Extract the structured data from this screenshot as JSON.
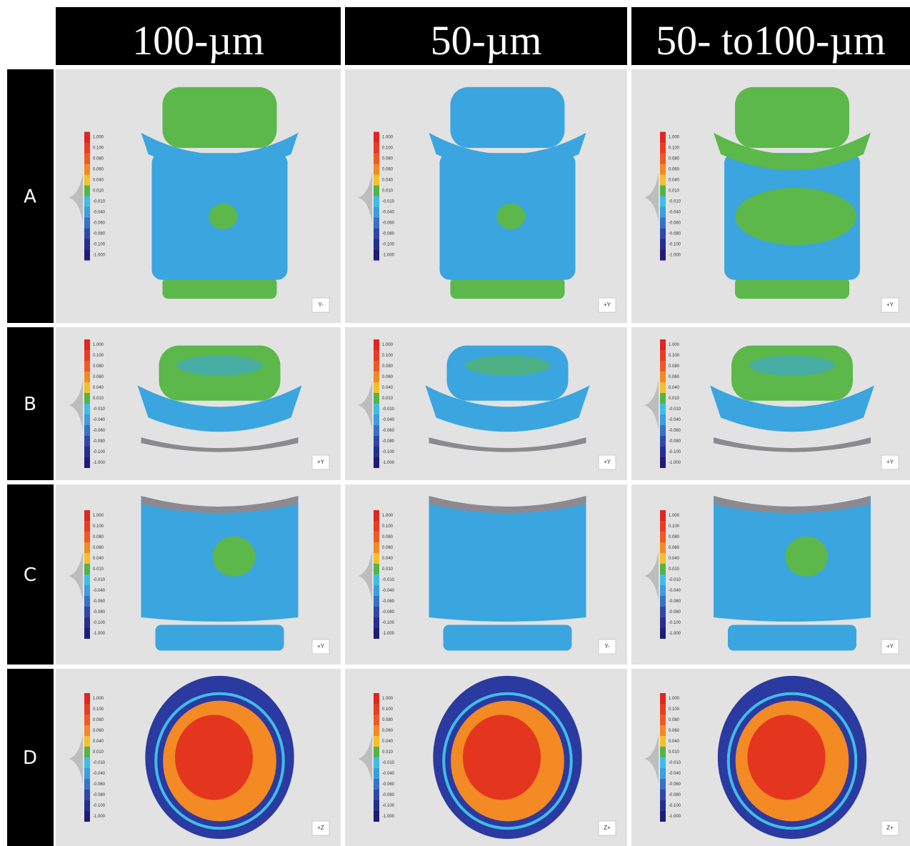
{
  "columns": [
    "100-µm",
    "50-µm",
    "50- to100-µm"
  ],
  "legend_labels": [
    "1.000",
    "0.100",
    "0.080",
    "0.060",
    "0.040",
    "0.010",
    "-0.010",
    "-0.040",
    "-0.060",
    "-0.080",
    "-0.100",
    "-1.000"
  ],
  "rows": [
    {
      "label": "A",
      "views": [
        "Y-",
        "+Y",
        "+Y"
      ]
    },
    {
      "label": "B",
      "views": [
        "+Y",
        "+Y",
        "+Y"
      ]
    },
    {
      "label": "C",
      "views": [
        "+Y",
        "Y-",
        "+Y"
      ]
    },
    {
      "label": "D",
      "views": [
        "+Z",
        "Z+",
        "Z+"
      ]
    }
  ]
}
